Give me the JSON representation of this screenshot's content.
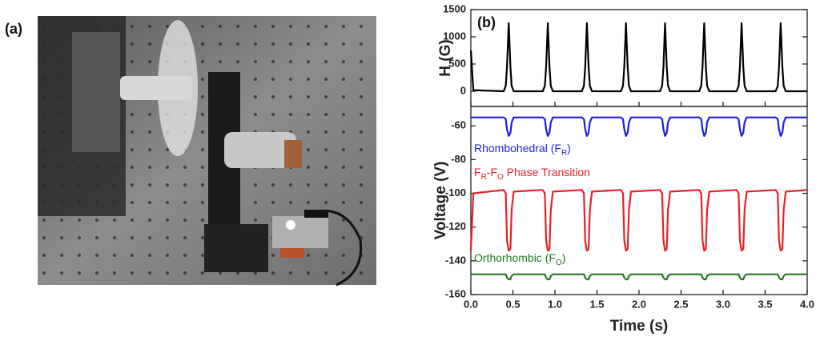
{
  "panel_a_label": "(a)",
  "chart_data": [
    {
      "type": "line",
      "panel_label": "(b)",
      "ylabel": "H (G)",
      "x": [
        0,
        0.03,
        0.39,
        0.415,
        0.43,
        0.45,
        0.47,
        0.485,
        0.51,
        0.855,
        0.88,
        0.895,
        0.915,
        0.935,
        0.95,
        0.975,
        1.32,
        1.345,
        1.36,
        1.38,
        1.4,
        1.415,
        1.44,
        1.785,
        1.81,
        1.825,
        1.845,
        1.865,
        1.88,
        1.905,
        2.25,
        2.275,
        2.29,
        2.31,
        2.33,
        2.345,
        2.37,
        2.715,
        2.74,
        2.755,
        2.775,
        2.795,
        2.81,
        2.835,
        3.16,
        3.185,
        3.2,
        3.22,
        3.24,
        3.255,
        3.28,
        3.625,
        3.65,
        3.665,
        3.685,
        3.705,
        3.72,
        3.745,
        4.0
      ],
      "xlim": [
        0,
        4
      ],
      "ylim": [
        -280,
        1500
      ],
      "yticks": [
        0,
        500,
        1000,
        1500
      ],
      "series": [
        {
          "color": "#000000",
          "values": [
            750,
            20,
            0,
            100,
            450,
            1250,
            450,
            100,
            0,
            0,
            100,
            450,
            1250,
            450,
            100,
            0,
            0,
            100,
            450,
            1250,
            450,
            100,
            0,
            0,
            100,
            450,
            1250,
            450,
            100,
            0,
            0,
            100,
            450,
            1250,
            450,
            100,
            0,
            0,
            100,
            450,
            1250,
            450,
            100,
            0,
            0,
            100,
            450,
            1250,
            450,
            100,
            0,
            0,
            100,
            450,
            1250,
            450,
            100,
            0,
            0
          ]
        }
      ]
    },
    {
      "type": "line",
      "ylabel": "Voltage (V)",
      "xlabel": "Time (s)",
      "x": [
        0,
        0.03,
        0.39,
        0.415,
        0.43,
        0.45,
        0.47,
        0.485,
        0.51,
        0.855,
        0.88,
        0.895,
        0.915,
        0.935,
        0.95,
        0.975,
        1.32,
        1.345,
        1.36,
        1.38,
        1.4,
        1.415,
        1.44,
        1.785,
        1.81,
        1.825,
        1.845,
        1.865,
        1.88,
        1.905,
        2.25,
        2.275,
        2.29,
        2.31,
        2.33,
        2.345,
        2.37,
        2.715,
        2.74,
        2.755,
        2.775,
        2.795,
        2.81,
        2.835,
        3.16,
        3.185,
        3.2,
        3.22,
        3.24,
        3.255,
        3.28,
        3.625,
        3.65,
        3.665,
        3.685,
        3.705,
        3.72,
        3.745,
        4.0
      ],
      "xlim": [
        0,
        4
      ],
      "xticks": [
        {
          "value": 0,
          "label": "0.0"
        },
        0.5,
        {
          "value": 1,
          "label": "1.0"
        },
        1.5,
        {
          "value": 2,
          "label": "2.0"
        },
        2.5,
        {
          "value": 3,
          "label": "3.0"
        },
        3.5,
        {
          "value": 4,
          "label": "4.0"
        }
      ],
      "ylim": [
        -160,
        -48.5
      ],
      "yticks": [
        -160,
        -140,
        -120,
        -100,
        -80,
        -60
      ],
      "series": [
        {
          "name": [
            "Rhombohedral (F",
            "R",
            ")"
          ],
          "color": "#1e1ee0",
          "values": [
            -55,
            -55,
            -55,
            -56,
            -62,
            -66,
            -64,
            -58,
            -55,
            -55,
            -56,
            -62,
            -66,
            -64,
            -58,
            -55,
            -55,
            -56,
            -62,
            -66,
            -64,
            -58,
            -55,
            -55,
            -56,
            -62,
            -66,
            -64,
            -58,
            -55,
            -55,
            -56,
            -62,
            -66,
            -64,
            -58,
            -55,
            -55,
            -56,
            -62,
            -66,
            -64,
            -58,
            -55,
            -55,
            -56,
            -62,
            -66,
            -64,
            -58,
            -55,
            -55,
            -56,
            -62,
            -66,
            -64,
            -58,
            -55,
            -55
          ]
        },
        {
          "name": [
            "F",
            "R",
            "-F",
            "O",
            " Phase Transition"
          ],
          "color": "#e8202a",
          "values": [
            -134,
            -100,
            -98,
            -100,
            -128,
            -134,
            -133,
            -110,
            -99,
            -98,
            -100,
            -128,
            -134,
            -133,
            -110,
            -99,
            -98,
            -100,
            -128,
            -134,
            -133,
            -110,
            -99,
            -98,
            -100,
            -128,
            -134,
            -133,
            -110,
            -99,
            -98,
            -100,
            -128,
            -134,
            -133,
            -110,
            -99,
            -98,
            -100,
            -128,
            -134,
            -133,
            -110,
            -99,
            -98,
            -100,
            -128,
            -134,
            -133,
            -110,
            -99,
            -98,
            -100,
            -128,
            -134,
            -133,
            -110,
            -99,
            -98
          ]
        },
        {
          "name": [
            "Orthorhombic (F",
            "O",
            ")"
          ],
          "color": "#1f7a1f",
          "values": [
            -148,
            -148,
            -148,
            -148,
            -150,
            -151,
            -151,
            -149,
            -148,
            -148,
            -148,
            -150,
            -151,
            -151,
            -149,
            -148,
            -148,
            -148,
            -150,
            -151,
            -151,
            -149,
            -148,
            -148,
            -148,
            -150,
            -151,
            -151,
            -149,
            -148,
            -148,
            -148,
            -150,
            -151,
            -151,
            -149,
            -148,
            -148,
            -148,
            -150,
            -151,
            -151,
            -149,
            -148,
            -148,
            -148,
            -150,
            -151,
            -151,
            -149,
            -148,
            -148,
            -148,
            -150,
            -151,
            -151,
            -149,
            -148,
            -148
          ]
        }
      ]
    }
  ]
}
